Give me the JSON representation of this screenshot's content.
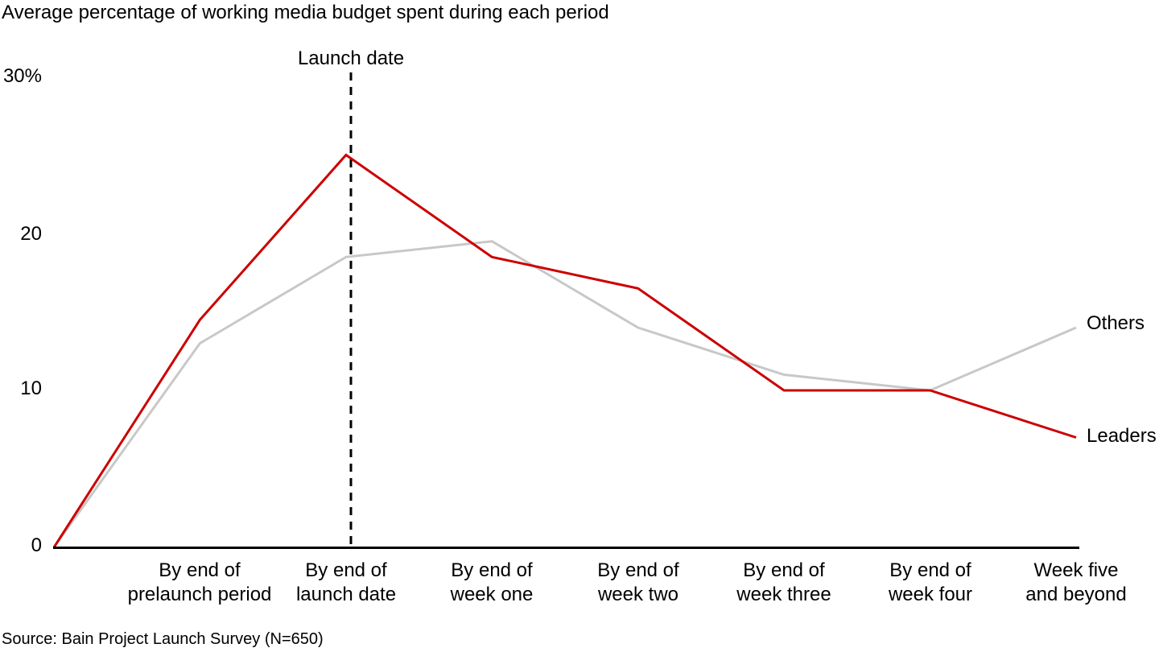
{
  "title": "Average percentage of working media budget spent during each period",
  "source": "Source: Bain Project Launch Survey (N=650)",
  "colors": {
    "leaders": "#cc0000",
    "others": "#c8c8c8",
    "axis": "#000000",
    "text": "#000000",
    "background": "#ffffff"
  },
  "chart_data": {
    "type": "line",
    "title": "Average percentage of working media budget spent during each period",
    "xlabel": "",
    "ylabel": "Percentage of working media budget",
    "ylim": [
      0,
      30
    ],
    "grid": false,
    "legend_position": "end-of-line labels at right",
    "note": "Both series start at 0 at the axis origin, one unlabeled step before the first category",
    "categories": [
      "By end of\nprelaunch period",
      "By end of\nlaunch date",
      "By end of\nweek one",
      "By end of\nweek two",
      "By end of\nweek three",
      "By end of\nweek four",
      "Week five\nand beyond"
    ],
    "series": [
      {
        "name": "Others",
        "color": "#c8c8c8",
        "values": [
          0,
          13,
          18.5,
          19.5,
          14,
          11,
          10,
          14
        ]
      },
      {
        "name": "Leaders",
        "color": "#cc0000",
        "values": [
          0,
          14.5,
          25,
          18.5,
          16.5,
          10,
          10,
          7
        ]
      }
    ],
    "y_axis": {
      "ticks": [
        "30%",
        "20",
        "10",
        "0"
      ],
      "tick_values": [
        30,
        20,
        10,
        0
      ]
    },
    "reference_line": {
      "label": "Launch date",
      "at_category": "By end of\nlaunch date",
      "style": "dashed",
      "color": "#000000"
    }
  }
}
